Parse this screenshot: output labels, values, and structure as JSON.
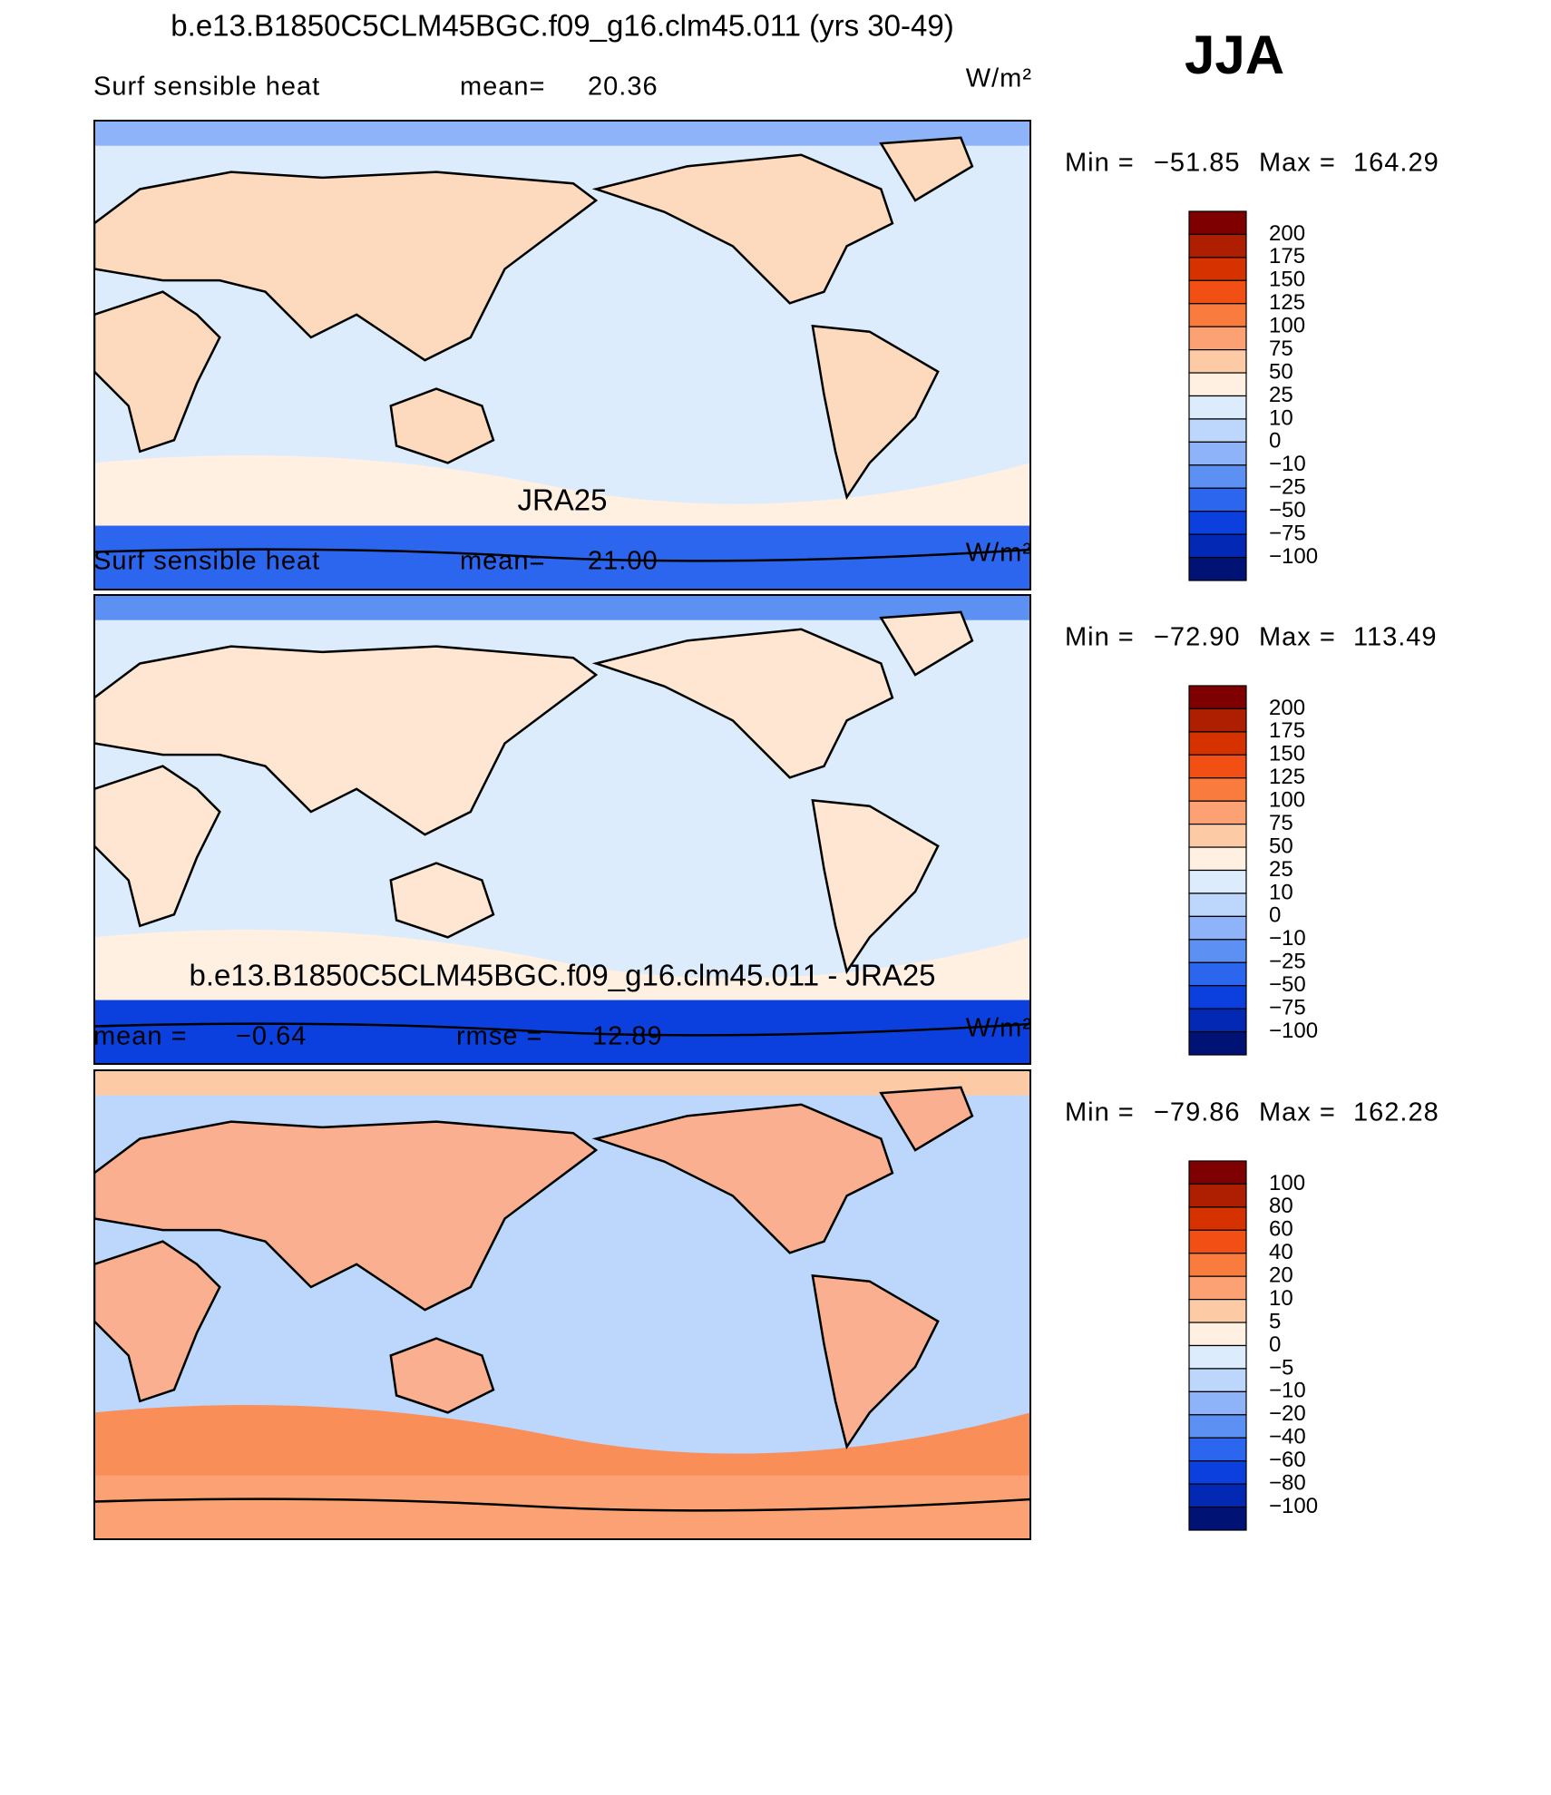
{
  "figure": {
    "season": "JJA",
    "panels": [
      {
        "title": "b.e13.B1850C5CLM45BGC.f09_g16.clm45.011 (yrs 30-49)",
        "field": "Surf sensible heat",
        "stat1_label": "mean=",
        "stat1": "20.36",
        "units": "W/m²",
        "min_label": "Min  =",
        "min": "−51.85",
        "max_label": "Max  =",
        "max": "164.29",
        "colorbar": {
          "levels": [
            "200",
            "175",
            "150",
            "125",
            "100",
            "75",
            "50",
            "25",
            "10",
            "0",
            "−10",
            "−25",
            "−50",
            "−75",
            "−100"
          ],
          "colors": [
            "#7f0000",
            "#ad1f00",
            "#d63200",
            "#f24f14",
            "#fa7b3e",
            "#fca173",
            "#fdcaa6",
            "#fff0e2",
            "#dcecfd",
            "#bcd6fc",
            "#8fb3f9",
            "#5c90f2",
            "#2c66ef",
            "#0b40de",
            "#0328b4",
            "#001273"
          ]
        }
      },
      {
        "title": "JRA25",
        "field": "Surf sensible heat",
        "stat1_label": "mean=",
        "stat1": "21.00",
        "units": "W/m²",
        "min_label": "Min  =",
        "min": "−72.90",
        "max_label": "Max  =",
        "max": "113.49",
        "colorbar": {
          "levels": [
            "200",
            "175",
            "150",
            "125",
            "100",
            "75",
            "50",
            "25",
            "10",
            "0",
            "−10",
            "−25",
            "−50",
            "−75",
            "−100"
          ],
          "colors": [
            "#7f0000",
            "#ad1f00",
            "#d63200",
            "#f24f14",
            "#fa7b3e",
            "#fca173",
            "#fdcaa6",
            "#fff0e2",
            "#dcecfd",
            "#bcd6fc",
            "#8fb3f9",
            "#5c90f2",
            "#2c66ef",
            "#0b40de",
            "#0328b4",
            "#001273"
          ]
        }
      },
      {
        "title": "b.e13.B1850C5CLM45BGC.f09_g16.clm45.011 - JRA25",
        "stat1_label": "mean =",
        "stat1": "−0.64",
        "stat2_label": "rmse =",
        "stat2": "12.89",
        "units": "W/m²",
        "min_label": "Min  =",
        "min": "−79.86",
        "max_label": "Max  =",
        "max": "162.28",
        "colorbar": {
          "levels": [
            "100",
            "80",
            "60",
            "40",
            "20",
            "10",
            "5",
            "0",
            "−5",
            "−10",
            "−20",
            "−40",
            "−60",
            "−80",
            "−100"
          ],
          "colors": [
            "#7f0000",
            "#ad1f00",
            "#d63200",
            "#f24f14",
            "#fa7b3e",
            "#fca173",
            "#fdcaa6",
            "#fff0e2",
            "#dcecfd",
            "#bcd6fc",
            "#8fb3f9",
            "#5c90f2",
            "#2c66ef",
            "#0b40de",
            "#0328b4",
            "#001273"
          ]
        }
      }
    ]
  }
}
